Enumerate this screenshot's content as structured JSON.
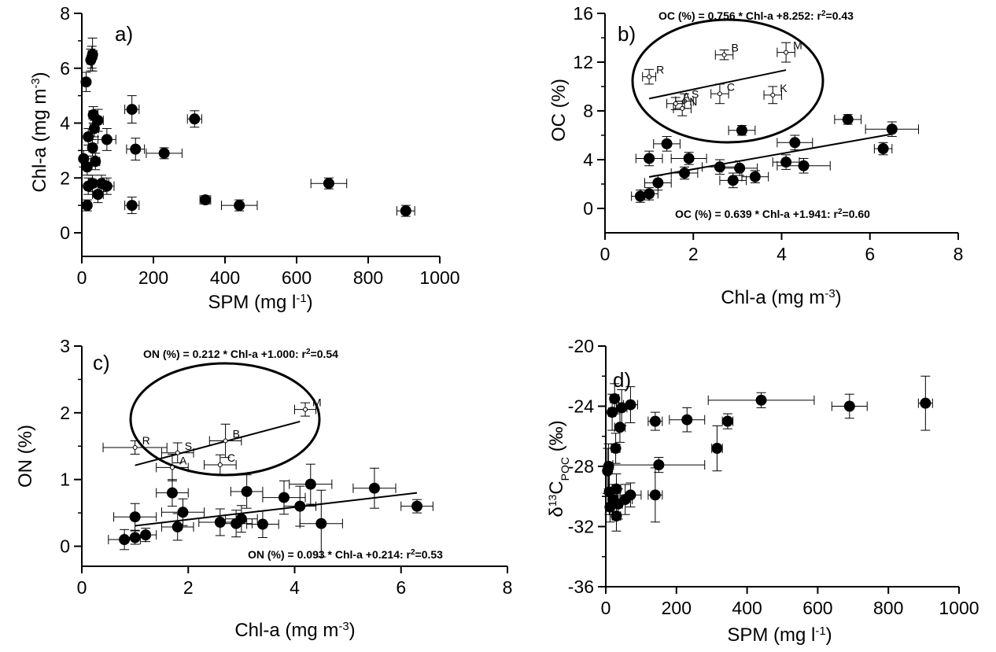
{
  "chart_data": [
    {
      "type": "scatter",
      "panel": "a)",
      "xlabel": "SPM (mg l",
      "xlabel_sup": "-1",
      "xlabel_end": ")",
      "ylabel": "Chl-a (mg m",
      "ylabel_sup": "-3",
      "ylabel_end": ")",
      "xlim": [
        0,
        1000
      ],
      "ylim": [
        0,
        8
      ],
      "xticks": [
        0,
        200,
        400,
        600,
        800,
        1000
      ],
      "yticks": [
        0,
        2,
        4,
        6,
        8
      ],
      "grid": false,
      "points": [
        {
          "x": 5,
          "y": 2.7,
          "xerr": 6,
          "yerr": 0.3
        },
        {
          "x": 12,
          "y": 5.5,
          "xerr": 7,
          "yerr": 0.35
        },
        {
          "x": 15,
          "y": 2.4,
          "xerr": 8,
          "yerr": 0.3
        },
        {
          "x": 18,
          "y": 3.5,
          "xerr": 8,
          "yerr": 0.3
        },
        {
          "x": 18,
          "y": 1.7,
          "xerr": 8,
          "yerr": 0.3
        },
        {
          "x": 15,
          "y": 1.0,
          "xerr": 6,
          "yerr": 0.2
        },
        {
          "x": 25,
          "y": 6.3,
          "xerr": 10,
          "yerr": 0.4
        },
        {
          "x": 28,
          "y": 6.4,
          "xerr": 10,
          "yerr": 0.4
        },
        {
          "x": 30,
          "y": 6.5,
          "xerr": 12,
          "yerr": 0.6
        },
        {
          "x": 30,
          "y": 3.1,
          "xerr": 10,
          "yerr": 0.3
        },
        {
          "x": 32,
          "y": 4.3,
          "xerr": 12,
          "yerr": 0.3
        },
        {
          "x": 30,
          "y": 1.8,
          "xerr": 10,
          "yerr": 0.3
        },
        {
          "x": 35,
          "y": 3.8,
          "xerr": 12,
          "yerr": 0.3
        },
        {
          "x": 38,
          "y": 2.6,
          "xerr": 12,
          "yerr": 0.3
        },
        {
          "x": 45,
          "y": 4.1,
          "xerr": 15,
          "yerr": 0.4
        },
        {
          "x": 45,
          "y": 1.4,
          "xerr": 15,
          "yerr": 0.3
        },
        {
          "x": 55,
          "y": 1.8,
          "xerr": 20,
          "yerr": 0.3
        },
        {
          "x": 70,
          "y": 1.7,
          "xerr": 20,
          "yerr": 0.3
        },
        {
          "x": 70,
          "y": 3.4,
          "xerr": 25,
          "yerr": 0.4
        },
        {
          "x": 140,
          "y": 4.5,
          "xerr": 20,
          "yerr": 0.5
        },
        {
          "x": 150,
          "y": 3.05,
          "xerr": 25,
          "yerr": 0.4
        },
        {
          "x": 140,
          "y": 1.0,
          "xerr": 20,
          "yerr": 0.3
        },
        {
          "x": 230,
          "y": 2.9,
          "xerr": 50,
          "yerr": 0.2
        },
        {
          "x": 315,
          "y": 4.15,
          "xerr": 20,
          "yerr": 0.3
        },
        {
          "x": 345,
          "y": 1.2,
          "xerr": 15,
          "yerr": 0.15
        },
        {
          "x": 440,
          "y": 1.0,
          "xerr": 50,
          "yerr": 0.2
        },
        {
          "x": 690,
          "y": 1.8,
          "xerr": 50,
          "yerr": 0.2
        },
        {
          "x": 905,
          "y": 0.8,
          "xerr": 25,
          "yerr": 0.2
        }
      ]
    },
    {
      "type": "scatter",
      "panel": "b)",
      "xlabel": "Chl-a (mg m",
      "xlabel_sup": "-3",
      "xlabel_end": ")",
      "ylabel": "OC (%)",
      "xlim": [
        0,
        8
      ],
      "ylim": [
        -2,
        16
      ],
      "xticks": [
        0,
        2,
        4,
        6,
        8
      ],
      "yticks": [
        0,
        4,
        8,
        12,
        16
      ],
      "grid": false,
      "points": [
        {
          "x": 0.8,
          "y": 1.0,
          "xerr": 0.2,
          "yerr": 0.5
        },
        {
          "x": 1.0,
          "y": 1.2,
          "xerr": 0.2,
          "yerr": 0.5
        },
        {
          "x": 1.0,
          "y": 4.1,
          "xerr": 0.3,
          "yerr": 0.6
        },
        {
          "x": 1.2,
          "y": 2.1,
          "xerr": 0.3,
          "yerr": 0.6
        },
        {
          "x": 1.4,
          "y": 5.3,
          "xerr": 0.3,
          "yerr": 0.6
        },
        {
          "x": 1.8,
          "y": 2.9,
          "xerr": 0.3,
          "yerr": 0.5
        },
        {
          "x": 1.9,
          "y": 4.1,
          "xerr": 0.4,
          "yerr": 0.5
        },
        {
          "x": 2.6,
          "y": 3.4,
          "xerr": 0.4,
          "yerr": 0.6
        },
        {
          "x": 2.9,
          "y": 2.3,
          "xerr": 0.3,
          "yerr": 0.6
        },
        {
          "x": 3.05,
          "y": 3.3,
          "xerr": 0.4,
          "yerr": 0.6
        },
        {
          "x": 3.1,
          "y": 6.4,
          "xerr": 0.3,
          "yerr": 0.4
        },
        {
          "x": 3.4,
          "y": 2.6,
          "xerr": 0.3,
          "yerr": 0.5
        },
        {
          "x": 4.1,
          "y": 3.8,
          "xerr": 0.3,
          "yerr": 0.6
        },
        {
          "x": 4.3,
          "y": 5.4,
          "xerr": 0.4,
          "yerr": 0.6
        },
        {
          "x": 4.5,
          "y": 3.5,
          "xerr": 0.6,
          "yerr": 0.6
        },
        {
          "x": 5.5,
          "y": 7.3,
          "xerr": 0.3,
          "yerr": 0.4
        },
        {
          "x": 6.3,
          "y": 4.9,
          "xerr": 0.2,
          "yerr": 0.5
        },
        {
          "x": 6.5,
          "y": 6.5,
          "xerr": 0.6,
          "yerr": 0.6
        }
      ],
      "labeled_points": [
        {
          "label": "R",
          "x": 1.0,
          "y": 10.8,
          "xerr": 0.15,
          "yerr": 0.6
        },
        {
          "label": "B",
          "x": 2.7,
          "y": 12.6,
          "xerr": 0.2,
          "yerr": 0.4
        },
        {
          "label": "M",
          "x": 4.1,
          "y": 12.8,
          "xerr": 0.2,
          "yerr": 0.8
        },
        {
          "label": "C",
          "x": 2.6,
          "y": 9.4,
          "xerr": 0.2,
          "yerr": 0.8
        },
        {
          "label": "K",
          "x": 3.8,
          "y": 9.3,
          "xerr": 0.2,
          "yerr": 0.7
        },
        {
          "label": "S",
          "x": 1.8,
          "y": 8.8,
          "xerr": 0.2,
          "yerr": 0.6
        },
        {
          "label": "A",
          "x": 1.6,
          "y": 8.6,
          "xerr": 0.2,
          "yerr": 0.5
        },
        {
          "label": "N",
          "x": 1.75,
          "y": 8.2,
          "xerr": 0.2,
          "yerr": 0.6
        }
      ],
      "fits": [
        {
          "equation": "OC (%) = 0.756 * Chl-a +8.252: r",
          "r2_value": "=0.43",
          "slope": 0.756,
          "intercept": 8.252,
          "x_range": [
            1.0,
            4.1
          ]
        },
        {
          "equation": "OC (%) = 0.639 * Chl-a +1.941: r",
          "r2_value": "=0.60",
          "slope": 0.639,
          "intercept": 1.941,
          "x_range": [
            1.0,
            6.5
          ]
        }
      ]
    },
    {
      "type": "scatter",
      "panel": "c)",
      "xlabel": "Chl-a (mg m",
      "xlabel_sup": "-3",
      "xlabel_end": ")",
      "ylabel": "ON (%)",
      "xlim": [
        0,
        8
      ],
      "ylim": [
        -0.3,
        3
      ],
      "xticks": [
        0,
        2,
        4,
        6,
        8
      ],
      "yticks": [
        0,
        1,
        2,
        3
      ],
      "grid": false,
      "points": [
        {
          "x": 0.8,
          "y": 0.1,
          "xerr": 0.3,
          "yerr": 0.15
        },
        {
          "x": 1.0,
          "y": 0.13,
          "xerr": 0.2,
          "yerr": 0.1
        },
        {
          "x": 1.0,
          "y": 0.44,
          "xerr": 0.4,
          "yerr": 0.2
        },
        {
          "x": 1.2,
          "y": 0.17,
          "xerr": 0.2,
          "yerr": 0.1
        },
        {
          "x": 1.7,
          "y": 0.8,
          "xerr": 0.3,
          "yerr": 0.2
        },
        {
          "x": 1.8,
          "y": 0.29,
          "xerr": 0.3,
          "yerr": 0.2
        },
        {
          "x": 1.9,
          "y": 0.51,
          "xerr": 0.4,
          "yerr": 0.2
        },
        {
          "x": 2.6,
          "y": 0.36,
          "xerr": 0.4,
          "yerr": 0.2
        },
        {
          "x": 2.9,
          "y": 0.34,
          "xerr": 0.3,
          "yerr": 0.2
        },
        {
          "x": 3.0,
          "y": 0.41,
          "xerr": 0.3,
          "yerr": 0.2
        },
        {
          "x": 3.1,
          "y": 0.82,
          "xerr": 0.3,
          "yerr": 0.25
        },
        {
          "x": 3.4,
          "y": 0.33,
          "xerr": 0.3,
          "yerr": 0.2
        },
        {
          "x": 3.8,
          "y": 0.73,
          "xerr": 0.4,
          "yerr": 0.25
        },
        {
          "x": 4.1,
          "y": 0.6,
          "xerr": 0.3,
          "yerr": 0.3
        },
        {
          "x": 4.3,
          "y": 0.93,
          "xerr": 0.4,
          "yerr": 0.3
        },
        {
          "x": 4.5,
          "y": 0.34,
          "xerr": 0.4,
          "yerr": 0.5
        },
        {
          "x": 5.5,
          "y": 0.87,
          "xerr": 0.4,
          "yerr": 0.3
        },
        {
          "x": 6.3,
          "y": 0.6,
          "xerr": 0.3,
          "yerr": 0.1
        }
      ],
      "labeled_points": [
        {
          "label": "R",
          "x": 1.0,
          "y": 1.48,
          "xerr": 0.6,
          "yerr": 0.1
        },
        {
          "label": "S",
          "x": 1.8,
          "y": 1.4,
          "xerr": 0.3,
          "yerr": 0.15
        },
        {
          "label": "A",
          "x": 1.7,
          "y": 1.18,
          "xerr": 0.3,
          "yerr": 0.2
        },
        {
          "label": "B",
          "x": 2.7,
          "y": 1.58,
          "xerr": 0.3,
          "yerr": 0.25
        },
        {
          "label": "C",
          "x": 2.6,
          "y": 1.22,
          "xerr": 0.3,
          "yerr": 0.15
        },
        {
          "label": "M",
          "x": 4.2,
          "y": 2.05,
          "xerr": 0.2,
          "yerr": 0.1
        }
      ],
      "fits": [
        {
          "equation": "ON (%) = 0.212 * Chl-a +1.000: r",
          "r2_value": "=0.54",
          "slope": 0.212,
          "intercept": 1.0,
          "x_range": [
            1.0,
            4.1
          ]
        },
        {
          "equation": "ON (%) = 0.093 * Chl-a +0.214: r",
          "r2_value": "=0.53",
          "slope": 0.093,
          "intercept": 0.214,
          "x_range": [
            1.0,
            6.3
          ]
        }
      ]
    },
    {
      "type": "scatter",
      "panel": "d)",
      "xlabel": "SPM (mg l",
      "xlabel_sup": "-1",
      "xlabel_end": ")",
      "ylabel_delta": "δ",
      "ylabel_13": "13",
      "ylabel_c": "C",
      "ylabel_poc": "POC",
      "ylabel_unit": " (‰)",
      "xlim": [
        0,
        1000
      ],
      "ylim": [
        -36,
        -20
      ],
      "xticks": [
        0,
        200,
        400,
        600,
        800,
        1000
      ],
      "yticks": [
        -36,
        -32,
        -28,
        -24,
        -20
      ],
      "grid": false,
      "points": [
        {
          "x": 5,
          "y": -28.3,
          "xerr": 8,
          "yerr": 1.5
        },
        {
          "x": 8,
          "y": -28.0,
          "xerr": 10,
          "yerr": 1.5
        },
        {
          "x": 10,
          "y": -29.7,
          "xerr": 10,
          "yerr": 1.5
        },
        {
          "x": 12,
          "y": -30.7,
          "xerr": 10,
          "yerr": 1.0
        },
        {
          "x": 18,
          "y": -24.4,
          "xerr": 10,
          "yerr": 1.2
        },
        {
          "x": 20,
          "y": -30.2,
          "xerr": 12,
          "yerr": 1.0
        },
        {
          "x": 25,
          "y": -23.5,
          "xerr": 12,
          "yerr": 1.0
        },
        {
          "x": 28,
          "y": -26.8,
          "xerr": 12,
          "yerr": 1.0
        },
        {
          "x": 30,
          "y": -29.5,
          "xerr": 12,
          "yerr": 1.0
        },
        {
          "x": 30,
          "y": -31.3,
          "xerr": 12,
          "yerr": 1.0
        },
        {
          "x": 35,
          "y": -30.5,
          "xerr": 12,
          "yerr": 1.0
        },
        {
          "x": 40,
          "y": -25.4,
          "xerr": 15,
          "yerr": 1.0
        },
        {
          "x": 45,
          "y": -24.1,
          "xerr": 15,
          "yerr": 1.2
        },
        {
          "x": 55,
          "y": -30.2,
          "xerr": 20,
          "yerr": 1.0
        },
        {
          "x": 70,
          "y": -23.9,
          "xerr": 20,
          "yerr": 1.2
        },
        {
          "x": 70,
          "y": -29.9,
          "xerr": 30,
          "yerr": 0.8
        },
        {
          "x": 140,
          "y": -25.0,
          "xerr": 20,
          "yerr": 0.6
        },
        {
          "x": 140,
          "y": -29.9,
          "xerr": 20,
          "yerr": 1.8
        },
        {
          "x": 150,
          "y": -27.9,
          "xerr": 130,
          "yerr": 0.5
        },
        {
          "x": 230,
          "y": -24.9,
          "xerr": 50,
          "yerr": 0.8
        },
        {
          "x": 315,
          "y": -26.8,
          "xerr": 15,
          "yerr": 1.5
        },
        {
          "x": 345,
          "y": -25.0,
          "xerr": 15,
          "yerr": 0.5
        },
        {
          "x": 440,
          "y": -23.6,
          "xerr": 150,
          "yerr": 0.5
        },
        {
          "x": 690,
          "y": -24.0,
          "xerr": 50,
          "yerr": 0.8
        },
        {
          "x": 905,
          "y": -23.8,
          "xerr": 20,
          "yerr": 1.8
        }
      ]
    }
  ]
}
